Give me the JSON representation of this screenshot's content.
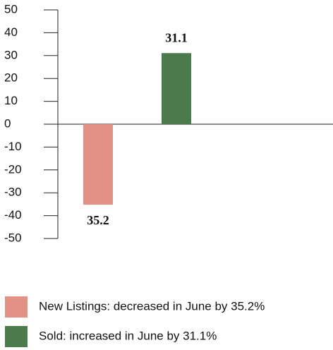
{
  "chart_data": {
    "type": "bar",
    "categories": [
      null,
      null
    ],
    "series": [
      {
        "name": "New Listings: decreased in June by 35.2%",
        "color": "#e39185",
        "values": [
          -35.2,
          null
        ],
        "value_labels": [
          "35.2",
          null
        ]
      },
      {
        "name": "Sold: increased in June by 31.1%",
        "color": "#4b7a4c",
        "values": [
          null,
          31.1
        ],
        "value_labels": [
          null,
          "31.1"
        ]
      }
    ],
    "ylim": [
      -50,
      50
    ],
    "yticks": [
      50,
      40,
      30,
      20,
      10,
      0,
      -10,
      -20,
      -30,
      -40,
      -50
    ]
  }
}
